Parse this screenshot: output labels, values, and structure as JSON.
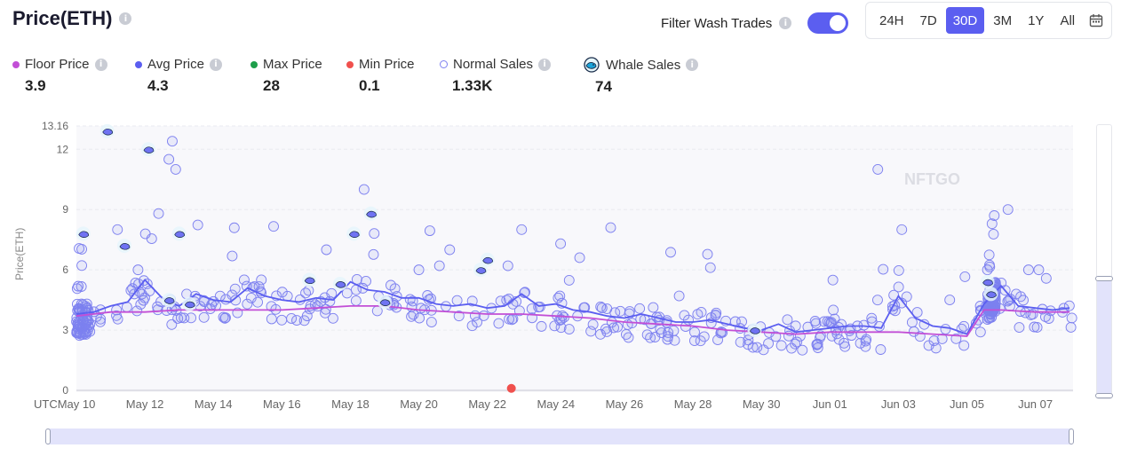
{
  "header": {
    "title": "Price(ETH)",
    "info": "i"
  },
  "filter": {
    "label": "Filter Wash Trades",
    "enabled": true
  },
  "ranges": [
    {
      "label": "24H",
      "active": false
    },
    {
      "label": "7D",
      "active": false
    },
    {
      "label": "30D",
      "active": true
    },
    {
      "label": "3M",
      "active": false
    },
    {
      "label": "1Y",
      "active": false
    },
    {
      "label": "All",
      "active": false
    }
  ],
  "legend": [
    {
      "label": "Floor Price",
      "value": "3.9",
      "color": "#c24fd6",
      "marker": "dot"
    },
    {
      "label": "Avg Price",
      "value": "4.3",
      "color": "#5b5ef0",
      "marker": "dot"
    },
    {
      "label": "Max Price",
      "value": "28",
      "color": "#1e9e4a",
      "marker": "dot"
    },
    {
      "label": "Min Price",
      "value": "0.1",
      "color": "#f0504d",
      "marker": "dot"
    },
    {
      "label": "Normal Sales",
      "value": "1.33K",
      "color": "#7d80f0",
      "marker": "hollow"
    },
    {
      "label": "Whale Sales",
      "value": "74",
      "color": "#1aa3d9",
      "marker": "whale-icon"
    }
  ],
  "watermark": "NFTGO",
  "chart_data": {
    "type": "scatter",
    "ylabel": "Price(ETH)",
    "ylim": [
      0,
      13.16
    ],
    "y_ticks": [
      0,
      3,
      6,
      9,
      12,
      13.16
    ],
    "y_tick_labels": [
      "0",
      "3",
      "6",
      "9",
      "12",
      "13.16"
    ],
    "x_tick_labels": [
      "UTCMay 10",
      "May 12",
      "May 14",
      "May 16",
      "May 18",
      "May 20",
      "May 22",
      "May 24",
      "May 26",
      "May 28",
      "May 30",
      "Jun 01",
      "Jun 03",
      "Jun 05",
      "Jun 07"
    ],
    "x_tick_days": [
      0,
      2,
      4,
      6,
      8,
      10,
      12,
      14,
      16,
      18,
      20,
      22,
      24,
      26,
      28
    ],
    "xlim_days": [
      0,
      29.1
    ],
    "grid": true,
    "series": [
      {
        "name": "Avg Price",
        "type": "line",
        "color": "#5b5ef0",
        "points": [
          [
            0,
            3.8
          ],
          [
            0.5,
            3.9
          ],
          [
            1,
            4.2
          ],
          [
            1.5,
            4.4
          ],
          [
            2,
            5.5
          ],
          [
            2.5,
            4.6
          ],
          [
            3,
            4.2
          ],
          [
            3.5,
            4.8
          ],
          [
            4,
            4.5
          ],
          [
            4.5,
            4.4
          ],
          [
            5,
            5.1
          ],
          [
            5.5,
            4.7
          ],
          [
            6,
            4.5
          ],
          [
            6.5,
            4.4
          ],
          [
            7,
            4.6
          ],
          [
            7.5,
            4.5
          ],
          [
            8,
            5.4
          ],
          [
            8.5,
            5.0
          ],
          [
            9,
            4.9
          ],
          [
            9.5,
            4.6
          ],
          [
            10,
            4.6
          ],
          [
            10.5,
            4.3
          ],
          [
            11,
            4.2
          ],
          [
            11.5,
            4.3
          ],
          [
            12,
            4.1
          ],
          [
            12.5,
            4.2
          ],
          [
            13,
            4.8
          ],
          [
            13.5,
            4.2
          ],
          [
            14,
            4.3
          ],
          [
            14.5,
            4.0
          ],
          [
            15,
            3.9
          ],
          [
            15.5,
            3.7
          ],
          [
            16,
            3.6
          ],
          [
            16.5,
            3.8
          ],
          [
            17,
            3.6
          ],
          [
            17.5,
            3.4
          ],
          [
            18,
            3.4
          ],
          [
            18.5,
            3.5
          ],
          [
            19,
            3.3
          ],
          [
            19.5,
            3.1
          ],
          [
            20,
            3.0
          ],
          [
            20.5,
            3.3
          ],
          [
            21,
            2.9
          ],
          [
            21.5,
            3.0
          ],
          [
            22,
            3.1
          ],
          [
            22.5,
            3.2
          ],
          [
            23,
            3.2
          ],
          [
            23.5,
            3.1
          ],
          [
            24,
            4.7
          ],
          [
            24.5,
            3.6
          ],
          [
            25,
            3.2
          ],
          [
            25.5,
            3.1
          ],
          [
            26,
            2.8
          ],
          [
            26.5,
            4.3
          ],
          [
            27,
            5.2
          ],
          [
            27.5,
            4.2
          ],
          [
            28,
            4.1
          ],
          [
            28.5,
            4.0
          ],
          [
            29,
            4.1
          ]
        ]
      },
      {
        "name": "Floor Price",
        "type": "line",
        "color": "#c24fd6",
        "points": [
          [
            0,
            3.7
          ],
          [
            1,
            3.9
          ],
          [
            2,
            3.9
          ],
          [
            3,
            4.0
          ],
          [
            4,
            4.0
          ],
          [
            5,
            4.0
          ],
          [
            6,
            4.0
          ],
          [
            7,
            4.1
          ],
          [
            8,
            4.2
          ],
          [
            9,
            4.2
          ],
          [
            10,
            4.0
          ],
          [
            11,
            3.9
          ],
          [
            12,
            3.8
          ],
          [
            13,
            3.8
          ],
          [
            14,
            3.7
          ],
          [
            15,
            3.6
          ],
          [
            16,
            3.4
          ],
          [
            17,
            3.3
          ],
          [
            18,
            3.2
          ],
          [
            19,
            3.0
          ],
          [
            20,
            2.9
          ],
          [
            21,
            2.8
          ],
          [
            22,
            2.9
          ],
          [
            23,
            2.9
          ],
          [
            24,
            2.9
          ],
          [
            25,
            2.8
          ],
          [
            26,
            2.7
          ],
          [
            26.5,
            4.0
          ],
          [
            27,
            4.0
          ],
          [
            28,
            3.9
          ],
          [
            29,
            3.9
          ]
        ]
      },
      {
        "name": "Min Price",
        "type": "scatter",
        "color": "#f0504d",
        "points": [
          [
            12.7,
            0.1
          ]
        ]
      },
      {
        "name": "Whale Sales",
        "type": "scatter",
        "color": "#1aa3d9",
        "points": [
          [
            0.9,
            12.9
          ],
          [
            2.1,
            12.0
          ],
          [
            0.2,
            7.8
          ],
          [
            1.4,
            7.2
          ],
          [
            3.0,
            7.8
          ],
          [
            8.1,
            7.8
          ],
          [
            8.6,
            8.8
          ],
          [
            12.0,
            6.5
          ],
          [
            11.8,
            6.0
          ],
          [
            6.8,
            5.5
          ],
          [
            7.7,
            5.3
          ],
          [
            2.7,
            4.5
          ],
          [
            3.3,
            4.3
          ],
          [
            9.0,
            4.4
          ],
          [
            19.8,
            3.0
          ],
          [
            26.6,
            5.4
          ],
          [
            26.7,
            4.8
          ]
        ]
      }
    ]
  },
  "scatter_seed": 42
}
